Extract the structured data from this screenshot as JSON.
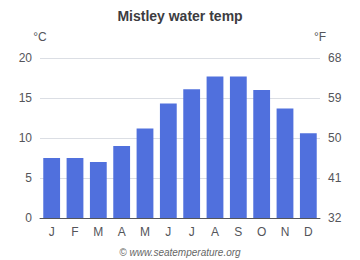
{
  "chart_data": {
    "type": "bar",
    "title": "Mistley water temp",
    "categories": [
      "J",
      "F",
      "M",
      "A",
      "M",
      "J",
      "J",
      "A",
      "S",
      "O",
      "N",
      "D"
    ],
    "values": [
      7.5,
      7.5,
      7.0,
      9.0,
      11.2,
      14.3,
      16.1,
      17.7,
      17.7,
      16.0,
      13.7,
      10.6
    ],
    "ylabel": "°C",
    "ylim": [
      0,
      20
    ],
    "yticks": [
      0,
      5,
      10,
      15,
      20
    ],
    "y2label": "°F",
    "y2lim": [
      32,
      68
    ],
    "y2ticks": [
      32,
      41,
      50,
      59,
      68
    ],
    "grid": true,
    "annotations": [
      "© www.seatemperature.org"
    ]
  }
}
